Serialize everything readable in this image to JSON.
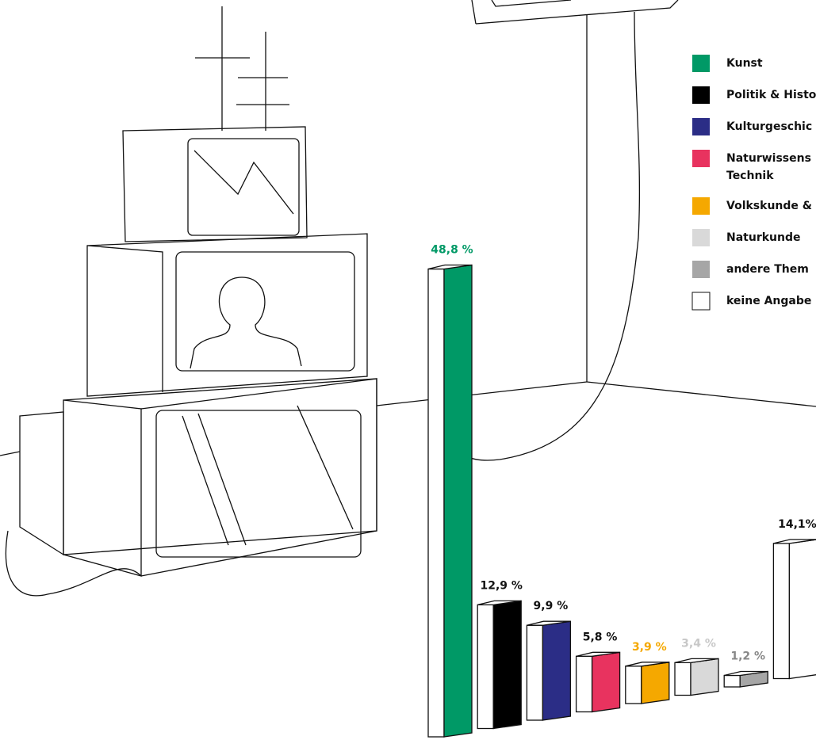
{
  "chart_data": {
    "type": "bar3d",
    "categories": [
      "Kunst",
      "Politik & Histo",
      "Kulturgeschic",
      "Naturwissens\nTechnik",
      "Volkskunde &",
      "Naturkunde",
      "andere Them",
      "keine Angabe"
    ],
    "values": [
      48.8,
      12.9,
      9.9,
      5.8,
      3.9,
      3.4,
      1.2,
      14.1
    ],
    "value_labels": [
      "48,8 %",
      "12,9 %",
      "9,9 %",
      "5,8 %",
      "3,9 %",
      "3,4 %",
      "1,2 %",
      "14,1%"
    ],
    "colors": [
      "#009966",
      "#000000",
      "#2b2d86",
      "#e8335f",
      "#f5a800",
      "#d9d9d9",
      "#a6a6a6",
      "#ffffff"
    ],
    "value_label_colors": [
      "#009966",
      "#111111",
      "#111111",
      "#111111",
      "#f5a800",
      "#c8c8c8",
      "#888888",
      "#111111"
    ]
  }
}
